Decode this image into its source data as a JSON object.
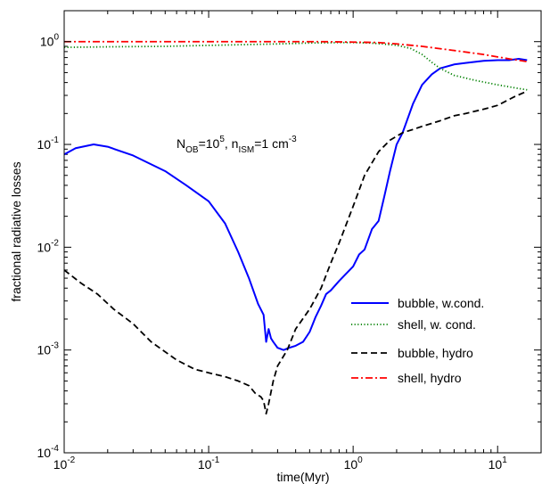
{
  "chart_data": {
    "type": "line",
    "xlabel": "time(Myr)",
    "ylabel": "fractional radiative losses",
    "xscale": "log",
    "yscale": "log",
    "xlim": [
      0.01,
      20
    ],
    "ylim": [
      0.0001,
      2
    ],
    "x_ticks": [
      {
        "base": "10",
        "exp": "-2",
        "value": 0.01
      },
      {
        "base": "10",
        "exp": "-1",
        "value": 0.1
      },
      {
        "base": "10",
        "exp": "0",
        "value": 1
      },
      {
        "base": "10",
        "exp": "1",
        "value": 10
      }
    ],
    "y_ticks": [
      {
        "base": "10",
        "exp": "-4",
        "value": 0.0001
      },
      {
        "base": "10",
        "exp": "-3",
        "value": 0.001
      },
      {
        "base": "10",
        "exp": "-2",
        "value": 0.01
      },
      {
        "base": "10",
        "exp": "-1",
        "value": 0.1
      },
      {
        "base": "10",
        "exp": "0",
        "value": 1
      }
    ],
    "annotation": {
      "n_main": "N",
      "n_sub": "OB",
      "eq1": "=10",
      "n_exp": "5",
      "sep": ", n",
      "m_sub": "ISM",
      "eq2": "=1 cm",
      "unit_exp": "-3"
    },
    "legend_position": "lower-right",
    "series": [
      {
        "name": "bubble, w.cond.",
        "color": "#0000ff",
        "style": "solid",
        "x": [
          0.01,
          0.012,
          0.016,
          0.02,
          0.03,
          0.05,
          0.07,
          0.1,
          0.13,
          0.16,
          0.19,
          0.22,
          0.24,
          0.25,
          0.26,
          0.27,
          0.28,
          0.3,
          0.33,
          0.36,
          0.4,
          0.45,
          0.5,
          0.55,
          0.6,
          0.65,
          0.7,
          0.8,
          1.0,
          1.1,
          1.2,
          1.35,
          1.5,
          1.65,
          1.8,
          2.0,
          2.2,
          2.6,
          3.0,
          3.5,
          4.0,
          5.0,
          6.0,
          8.0,
          10.0,
          12.0,
          14.0,
          16.0
        ],
        "y": [
          0.08,
          0.092,
          0.1,
          0.095,
          0.078,
          0.055,
          0.04,
          0.028,
          0.017,
          0.009,
          0.005,
          0.0028,
          0.0022,
          0.0012,
          0.0016,
          0.0013,
          0.0012,
          0.00105,
          0.001,
          0.00105,
          0.0011,
          0.0012,
          0.0015,
          0.0021,
          0.0027,
          0.0035,
          0.0038,
          0.0047,
          0.0065,
          0.0085,
          0.0095,
          0.015,
          0.018,
          0.032,
          0.055,
          0.1,
          0.13,
          0.25,
          0.38,
          0.48,
          0.55,
          0.6,
          0.62,
          0.65,
          0.66,
          0.66,
          0.68,
          0.66
        ]
      },
      {
        "name": "shell, w. cond.",
        "color": "#008000",
        "style": "dotted",
        "x": [
          0.01,
          0.02,
          0.05,
          0.1,
          0.3,
          0.5,
          0.8,
          1.0,
          1.3,
          1.6,
          2.0,
          2.5,
          3.0,
          3.5,
          4.0,
          5.0,
          7.0,
          10.0,
          14.0,
          16.0
        ],
        "y": [
          0.88,
          0.89,
          0.9,
          0.92,
          0.95,
          0.97,
          0.98,
          0.98,
          0.97,
          0.95,
          0.92,
          0.86,
          0.75,
          0.63,
          0.55,
          0.47,
          0.42,
          0.38,
          0.35,
          0.34
        ]
      },
      {
        "name": "bubble, hydro",
        "color": "#000000",
        "style": "dashed",
        "x": [
          0.01,
          0.013,
          0.017,
          0.022,
          0.03,
          0.04,
          0.06,
          0.08,
          0.1,
          0.13,
          0.16,
          0.19,
          0.21,
          0.23,
          0.24,
          0.25,
          0.26,
          0.28,
          0.3,
          0.35,
          0.4,
          0.5,
          0.6,
          0.7,
          0.8,
          1.0,
          1.2,
          1.5,
          1.8,
          2.2,
          2.6,
          3.0,
          3.5,
          4.0,
          5.0,
          6.0,
          8.0,
          10.0,
          13.0,
          16.0
        ],
        "y": [
          0.006,
          0.0045,
          0.0035,
          0.0025,
          0.0018,
          0.0012,
          0.0008,
          0.00065,
          0.0006,
          0.00055,
          0.0005,
          0.00045,
          0.00038,
          0.00035,
          0.00032,
          0.00024,
          0.0003,
          0.0005,
          0.0007,
          0.001,
          0.0016,
          0.0025,
          0.004,
          0.007,
          0.011,
          0.025,
          0.05,
          0.085,
          0.11,
          0.13,
          0.14,
          0.15,
          0.16,
          0.17,
          0.19,
          0.2,
          0.22,
          0.24,
          0.29,
          0.33
        ]
      },
      {
        "name": "shell, hydro",
        "color": "#ff0000",
        "style": "dashdot",
        "x": [
          0.01,
          0.03,
          0.1,
          0.3,
          0.6,
          1.0,
          1.5,
          2.0,
          3.0,
          5.0,
          8.0,
          12.0,
          16.0
        ],
        "y": [
          1.0,
          1.0,
          1.0,
          1.0,
          1.0,
          0.99,
          0.98,
          0.95,
          0.9,
          0.82,
          0.75,
          0.68,
          0.64
        ]
      }
    ]
  }
}
